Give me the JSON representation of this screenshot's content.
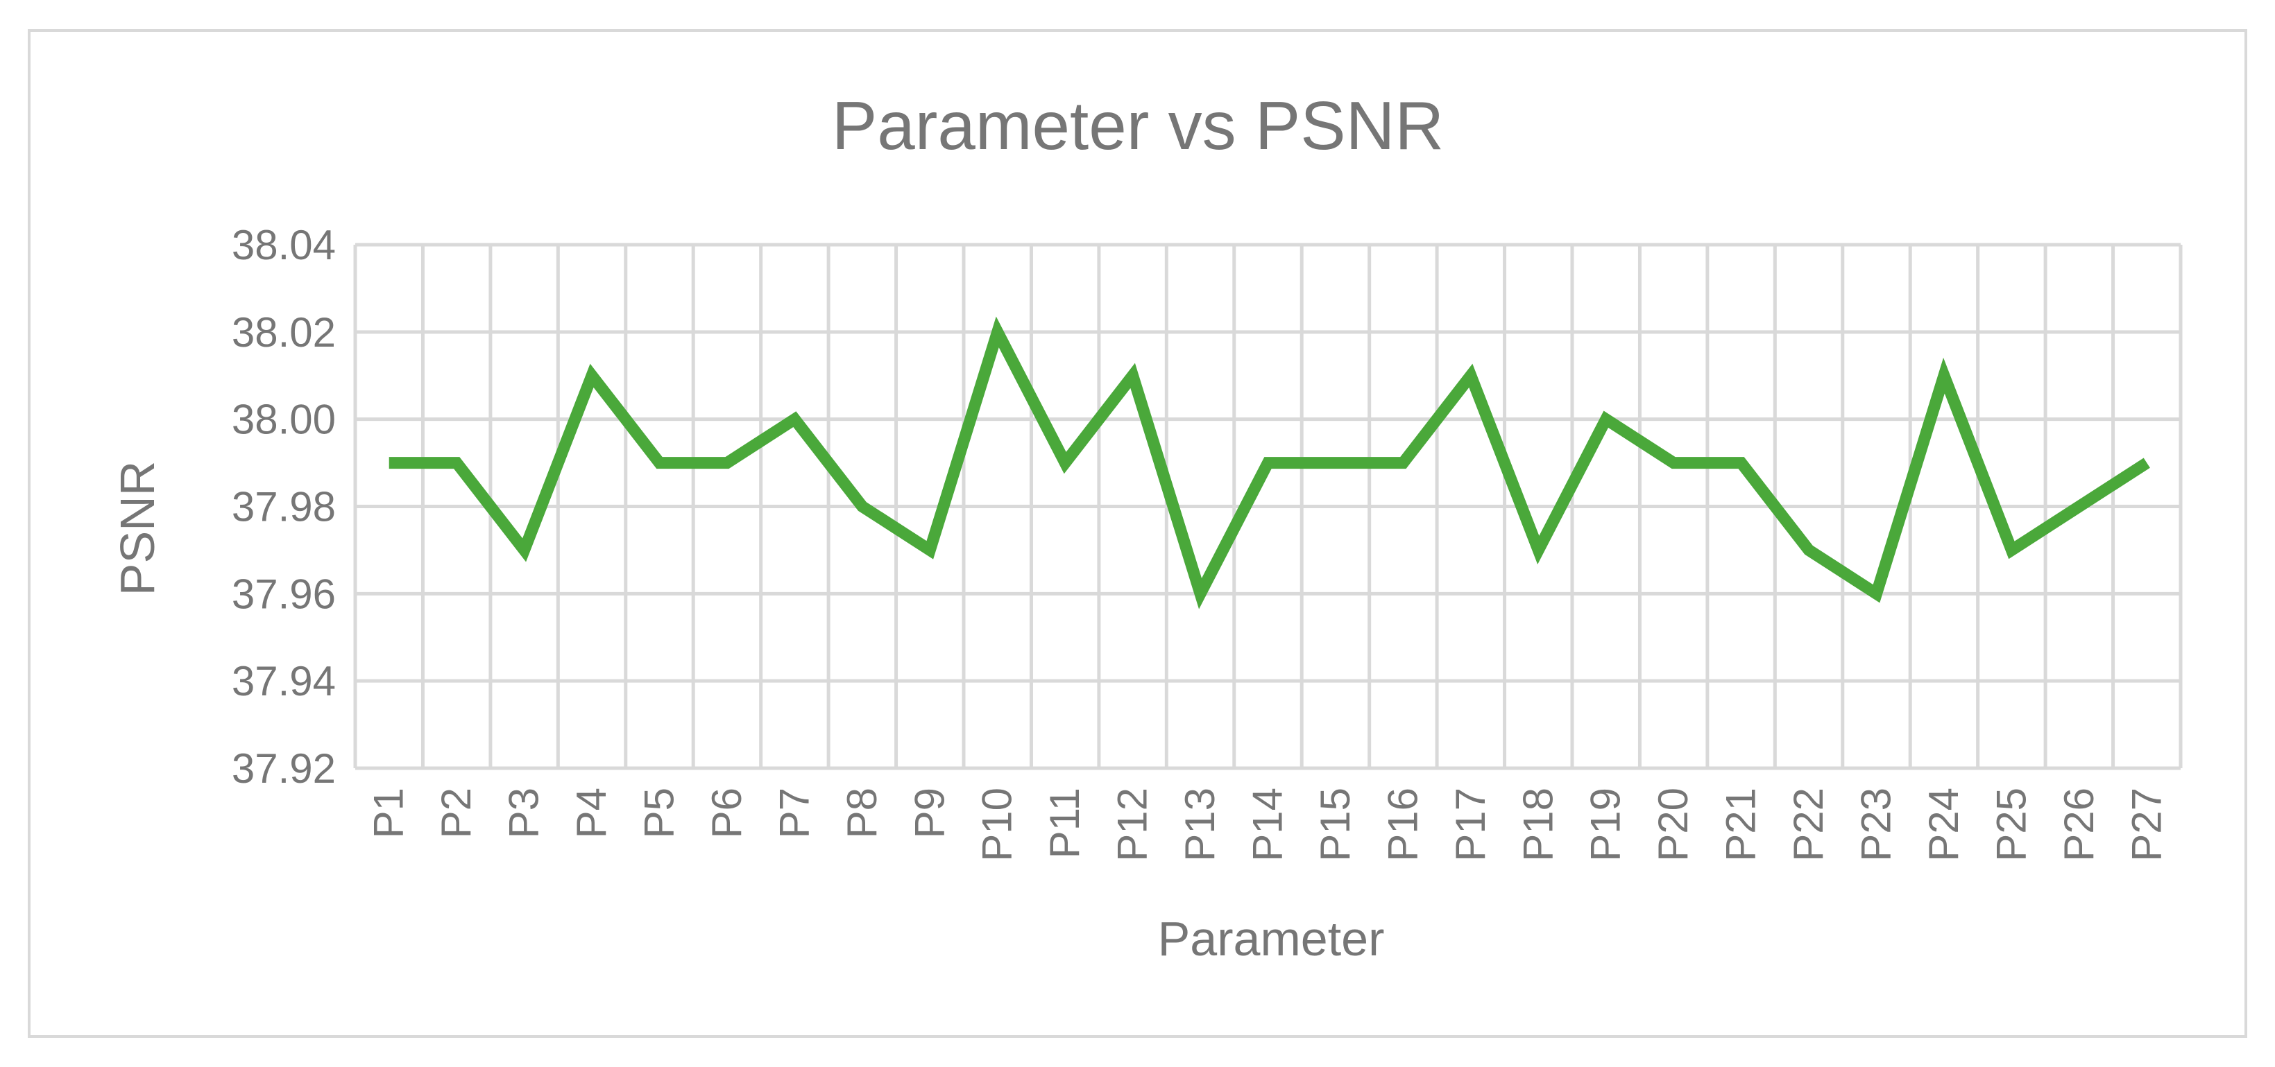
{
  "chart_data": {
    "type": "line",
    "title": "Parameter vs PSNR",
    "xlabel": "Parameter",
    "ylabel": "PSNR",
    "categories": [
      "P1",
      "P2",
      "P3",
      "P4",
      "P5",
      "P6",
      "P7",
      "P8",
      "P9",
      "P10",
      "P11",
      "P12",
      "P13",
      "P14",
      "P15",
      "P16",
      "P17",
      "P18",
      "P19",
      "P20",
      "P21",
      "P22",
      "P23",
      "P24",
      "P25",
      "P26",
      "P27"
    ],
    "series": [
      {
        "values": [
          37.99,
          37.99,
          37.97,
          38.01,
          37.99,
          37.99,
          38.0,
          37.98,
          37.97,
          38.02,
          37.99,
          38.01,
          37.96,
          37.99,
          37.99,
          37.99,
          38.01,
          37.97,
          38.0,
          37.99,
          37.99,
          37.97,
          37.96,
          38.01,
          37.97,
          37.98,
          37.99
        ],
        "color": "#4aa83a"
      }
    ],
    "ylim": [
      37.92,
      38.04
    ],
    "ytick_step": 0.02,
    "ytick_decimals": 2,
    "grid": true,
    "legend": "none"
  }
}
